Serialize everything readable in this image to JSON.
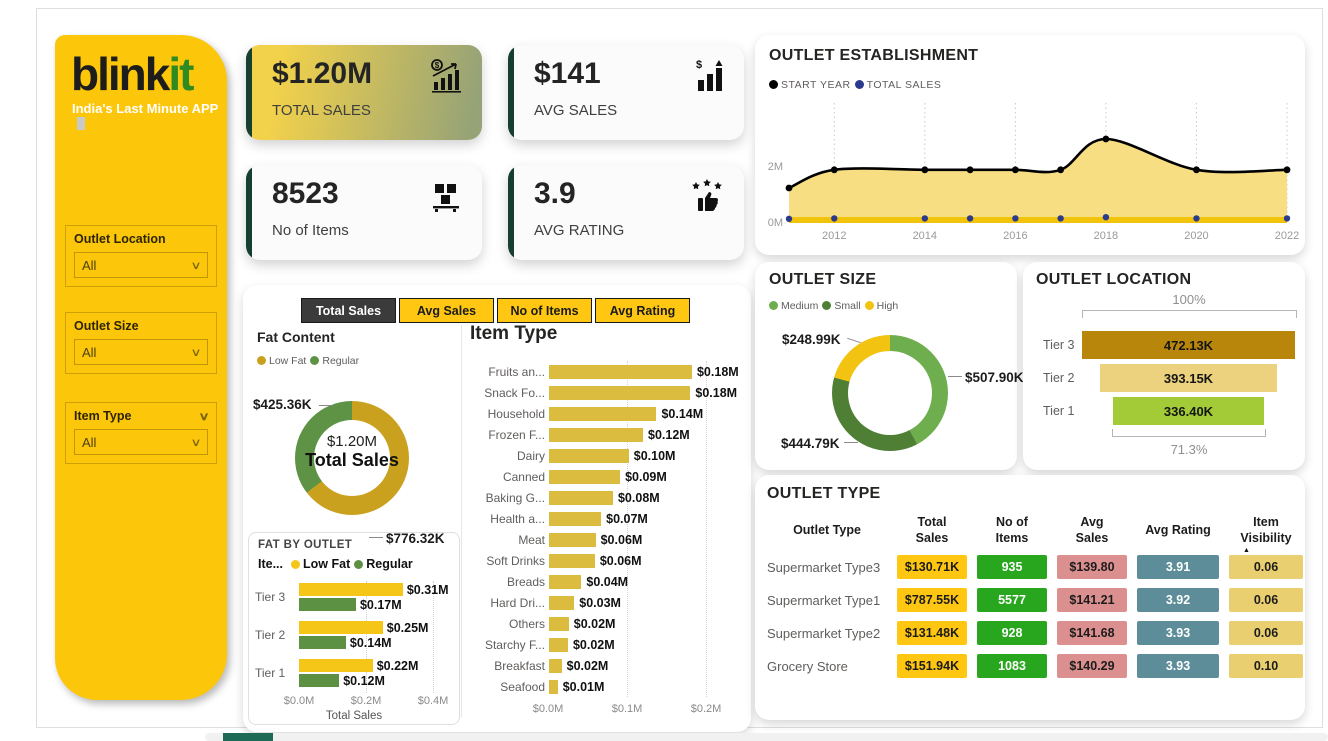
{
  "brand": {
    "blink": "blink",
    "it": "it",
    "tagline": "India's Last Minute APP"
  },
  "filters": [
    {
      "label": "Outlet Location",
      "value": "All"
    },
    {
      "label": "Outlet Size",
      "value": "All"
    },
    {
      "label": "Item Type",
      "value": "All"
    }
  ],
  "kpis": [
    {
      "value": "$1.20M",
      "label": "TOTAL SALES",
      "icon": "sales-trend-icon"
    },
    {
      "value": "$141",
      "label": "AVG SALES",
      "icon": "dollar-bars-icon"
    },
    {
      "value": "8523",
      "label": "No of Items",
      "icon": "pallet-boxes-icon"
    },
    {
      "value": "3.9",
      "label": "AVG RATING",
      "icon": "thumb-stars-icon"
    }
  ],
  "tabs": [
    {
      "label": "Total Sales",
      "selected": true
    },
    {
      "label": "Avg Sales",
      "selected": false
    },
    {
      "label": "No of Items",
      "selected": false
    },
    {
      "label": "Avg Rating",
      "selected": false
    }
  ],
  "chart_data": [
    {
      "id": "outlet_establishment",
      "type": "area",
      "title": "OUTLET ESTABLISHMENT",
      "legend": [
        {
          "label": "START YEAR",
          "color": "#000000"
        },
        {
          "label": "TOTAL SALES",
          "color": "#2A3B8F"
        }
      ],
      "x": [
        2011,
        2012,
        2014,
        2015,
        2016,
        2017,
        2018,
        2020,
        2022
      ],
      "series": [
        {
          "name": "START YEAR",
          "color": "#000000",
          "values_M": [
            1.25,
            1.9,
            1.9,
            1.9,
            1.9,
            1.9,
            3.0,
            1.9,
            1.9
          ]
        },
        {
          "name": "TOTAL SALES",
          "color": "#2A3B8F",
          "values_M": [
            0.06,
            0.08,
            0.08,
            0.08,
            0.08,
            0.08,
            0.14,
            0.08,
            0.08
          ]
        }
      ],
      "area_fill": "#F8DC7C",
      "band_fill": "#F2C30B",
      "ylim_M": [
        0,
        3.2
      ],
      "yticks": [
        "0M",
        "2M"
      ],
      "xticks": [
        2012,
        2014,
        2016,
        2018,
        2020,
        2022
      ],
      "grid": "dotted-vertical"
    },
    {
      "id": "fat_content",
      "type": "donut",
      "title": "Fat Content",
      "center_value": "$1.20M",
      "center_label": "Total Sales",
      "slices": [
        {
          "label": "Low Fat",
          "value": "$776.32K",
          "pct": 64.6,
          "color": "#C9A11E"
        },
        {
          "label": "Regular",
          "value": "$425.36K",
          "pct": 35.4,
          "color": "#5E9345"
        }
      ]
    },
    {
      "id": "item_type",
      "type": "bar",
      "title": "Item Type",
      "xlabel": "",
      "bar_color": "#DCBC3F",
      "categories": [
        "Fruits an...",
        "Snack Fo...",
        "Household",
        "Frozen F...",
        "Dairy",
        "Canned",
        "Baking G...",
        "Health a...",
        "Meat",
        "Soft Drinks",
        "Breads",
        "Hard Dri...",
        "Others",
        "Starchy F...",
        "Breakfast",
        "Seafood"
      ],
      "values_M": [
        0.181,
        0.179,
        0.136,
        0.119,
        0.101,
        0.09,
        0.081,
        0.066,
        0.059,
        0.058,
        0.041,
        0.032,
        0.025,
        0.024,
        0.016,
        0.011
      ],
      "labels": [
        "$0.18M",
        "$0.18M",
        "$0.14M",
        "$0.12M",
        "$0.10M",
        "$0.09M",
        "$0.08M",
        "$0.07M",
        "$0.06M",
        "$0.06M",
        "$0.04M",
        "$0.03M",
        "$0.02M",
        "$0.02M",
        "$0.02M",
        "$0.01M"
      ],
      "xticks": [
        "$0.0M",
        "$0.1M",
        "$0.2M"
      ],
      "xtick_values_M": [
        0,
        0.1,
        0.2
      ]
    },
    {
      "id": "fat_by_outlet",
      "type": "grouped-bar",
      "title": "FAT BY OUTLET",
      "legend_truncated": "Ite...",
      "categories": [
        "Tier 3",
        "Tier 2",
        "Tier 1"
      ],
      "series": [
        {
          "name": "Low Fat",
          "color": "#F5C518",
          "values_M": [
            0.31,
            0.25,
            0.22
          ],
          "labels": [
            "$0.31M",
            "$0.25M",
            "$0.22M"
          ]
        },
        {
          "name": "Regular",
          "color": "#5C9144",
          "values_M": [
            0.17,
            0.14,
            0.12
          ],
          "labels": [
            "$0.17M",
            "$0.14M",
            "$0.12M"
          ]
        }
      ],
      "xticks": [
        "$0.0M",
        "$0.2M",
        "$0.4M"
      ],
      "xtick_values_M": [
        0,
        0.2,
        0.4
      ],
      "xlabel": "Total Sales"
    },
    {
      "id": "outlet_size",
      "type": "donut",
      "title": "OUTLET SIZE",
      "slices": [
        {
          "label": "Medium",
          "value": "$507.90K",
          "pct": 42.3,
          "color": "#6FAE4F"
        },
        {
          "label": "Small",
          "value": "$444.79K",
          "pct": 37.0,
          "color": "#4E7F35"
        },
        {
          "label": "High",
          "value": "$248.99K",
          "pct": 20.7,
          "color": "#F2C311"
        }
      ]
    },
    {
      "id": "outlet_location",
      "type": "funnel",
      "title": "OUTLET LOCATION",
      "top_label": "100%",
      "bottom_label": "71.3%",
      "rows": [
        {
          "label": "Tier 3",
          "value": "472.13K",
          "pct": 100,
          "color": "#B8860B"
        },
        {
          "label": "Tier 2",
          "value": "393.15K",
          "pct": 83.3,
          "color": "#ECD17E"
        },
        {
          "label": "Tier 1",
          "value": "336.40K",
          "pct": 71.3,
          "color": "#A3CB37"
        }
      ]
    },
    {
      "id": "outlet_type",
      "type": "table",
      "title": "OUTLET TYPE",
      "columns": [
        "Outlet Type",
        "Total\nSales",
        "No of\nItems",
        "Avg\nSales",
        "Avg Rating",
        "Item\nVisibility"
      ],
      "sort_column": "Item Visibility",
      "sort_indicator": "▲",
      "cell_bg": [
        "none",
        "#FFC711",
        "#28A71E",
        "#DB8F8F",
        "#5D8D98",
        "#E9CF6F"
      ],
      "cell_fg": [
        "#605E5C",
        "#1c1c1c",
        "#ffffff",
        "#1c1c1c",
        "#ffffff",
        "#1c1c1c"
      ],
      "rows": [
        [
          "Supermarket Type3",
          "$130.71K",
          "935",
          "$139.80",
          "3.91",
          "0.06"
        ],
        [
          "Supermarket Type1",
          "$787.55K",
          "5577",
          "$141.21",
          "3.92",
          "0.06"
        ],
        [
          "Supermarket Type2",
          "$131.48K",
          "928",
          "$141.68",
          "3.93",
          "0.06"
        ],
        [
          "Grocery Store",
          "$151.94K",
          "1083",
          "$140.29",
          "3.93",
          "0.10"
        ]
      ]
    }
  ]
}
